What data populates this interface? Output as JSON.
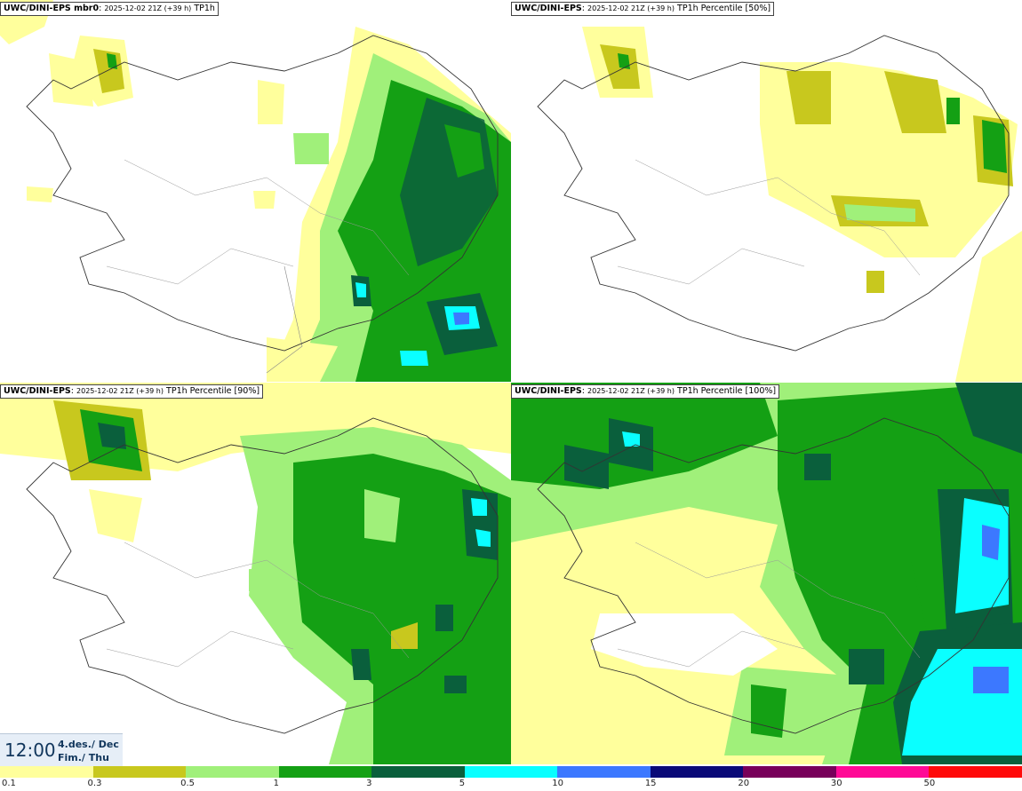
{
  "panels": [
    {
      "model": "UWC/DINI-EPS mbr0",
      "date": "2025-12-02 21Z (+39 h)",
      "field": "TP1h"
    },
    {
      "model": "UWC/DINI-EPS",
      "date": "2025-12-02 21Z (+39 h)",
      "field": "TP1h Percentile [50%]"
    },
    {
      "model": "UWC/DINI-EPS",
      "date": "2025-12-02 21Z (+39 h)",
      "field": "TP1h Percentile [90%]"
    },
    {
      "model": "UWC/DINI-EPS",
      "date": "2025-12-02 21Z (+39 h)",
      "field": "TP1h Percentile [100%]"
    }
  ],
  "time": {
    "clock": "12:00",
    "date_line": "4.des./ Dec",
    "day_line": "Fim./ Thu"
  },
  "legend": {
    "labels": [
      "0.1",
      "0.3",
      "0.5",
      "1",
      "3",
      "5",
      "10",
      "15",
      "20",
      "30",
      "50"
    ],
    "colors": [
      "#ffff9c",
      "#c8c81e",
      "#a0f07a",
      "#14a014",
      "#0a5f3c",
      "#0affff",
      "#3c78ff",
      "#0a0a78",
      "#78005a",
      "#ff0a96",
      "#ff0a0a"
    ]
  }
}
